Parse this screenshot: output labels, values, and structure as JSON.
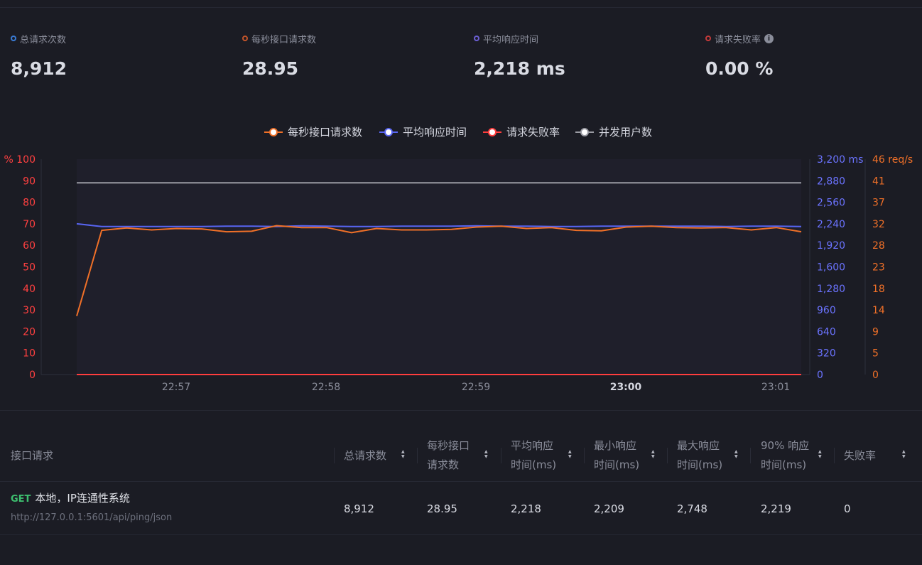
{
  "stats": [
    {
      "label": "总请求次数",
      "value": "8,912",
      "color": "#3a7bd5"
    },
    {
      "label": "每秒接口请求数",
      "value": "28.95",
      "color": "#c3542a"
    },
    {
      "label": "平均响应时间",
      "value": "2,218 ms",
      "color": "#6b5fd4"
    },
    {
      "label": "请求失败率",
      "value": "0.00 %",
      "color": "#c33a3a",
      "info": "i"
    }
  ],
  "chart_data": {
    "type": "line",
    "legend": [
      {
        "name": "每秒接口请求数",
        "color": "#f07028"
      },
      {
        "name": "平均响应时间",
        "color": "#5865f2"
      },
      {
        "name": "请求失败率",
        "color": "#ff3d3d"
      },
      {
        "name": "并发用户数",
        "color": "#9a9ba3"
      }
    ],
    "x_ticks": [
      "22:57",
      "22:58",
      "22:59",
      "23:00",
      "23:01"
    ],
    "x_tick_bold": [
      false,
      false,
      false,
      true,
      false
    ],
    "axis_left": {
      "unit": "%",
      "ticks": [
        "100",
        "90",
        "80",
        "70",
        "60",
        "50",
        "40",
        "30",
        "20",
        "10",
        "0"
      ],
      "range": [
        0,
        100
      ],
      "color": "#ff4040"
    },
    "axis_right1": {
      "unit": "ms",
      "ticks": [
        "3,200",
        "2,880",
        "2,560",
        "2,240",
        "1,920",
        "1,600",
        "1,280",
        "960",
        "640",
        "320",
        "0"
      ],
      "range": [
        0,
        3200
      ],
      "color": "#6b73ff"
    },
    "axis_right2": {
      "unit": "req/s",
      "ticks": [
        "46",
        "41",
        "37",
        "32",
        "28",
        "23",
        "18",
        "14",
        "9",
        "5",
        "0"
      ],
      "range": [
        0,
        46
      ],
      "color": "#f07028"
    },
    "series": [
      {
        "name": "每秒接口请求数",
        "axis": "right2",
        "color": "#f07028",
        "values": [
          12.5,
          30.8,
          31.3,
          30.9,
          31.2,
          31.1,
          30.5,
          30.6,
          31.8,
          31.4,
          31.4,
          30.3,
          31.2,
          30.9,
          30.9,
          31.0,
          31.5,
          31.7,
          31.2,
          31.4,
          30.8,
          30.7,
          31.5,
          31.7,
          31.4,
          31.3,
          31.4,
          30.9,
          31.4,
          30.5
        ]
      },
      {
        "name": "平均响应时间",
        "axis": "right1",
        "color": "#5865f2",
        "values": [
          2240,
          2200,
          2200,
          2200,
          2200,
          2200,
          2205,
          2205,
          2200,
          2210,
          2205,
          2200,
          2200,
          2205,
          2205,
          2205,
          2210,
          2205,
          2205,
          2200,
          2200,
          2205,
          2205,
          2205,
          2205,
          2205,
          2200,
          2205,
          2205,
          2200
        ]
      },
      {
        "name": "请求失败率",
        "axis": "left",
        "color": "#ff3d3d",
        "values": [
          0,
          0,
          0,
          0,
          0,
          0,
          0,
          0,
          0,
          0,
          0,
          0,
          0,
          0,
          0,
          0,
          0,
          0,
          0,
          0,
          0,
          0,
          0,
          0,
          0,
          0,
          0,
          0,
          0,
          0
        ]
      },
      {
        "name": "并发用户数",
        "axis": "left",
        "color": "#9a9ba3",
        "values": [
          89,
          89,
          89,
          89,
          89,
          89,
          89,
          89,
          89,
          89,
          89,
          89,
          89,
          89,
          89,
          89,
          89,
          89,
          89,
          89,
          89,
          89,
          89,
          89,
          89,
          89,
          89,
          89,
          89,
          89
        ]
      }
    ]
  },
  "table": {
    "headers": [
      {
        "line1": "接口请求",
        "line2": ""
      },
      {
        "line1": "总请求数",
        "line2": ""
      },
      {
        "line1": "每秒接口",
        "line2": "请求数"
      },
      {
        "line1": "平均响应",
        "line2": "时间(ms)"
      },
      {
        "line1": "最小响应",
        "line2": "时间(ms)"
      },
      {
        "line1": "最大响应",
        "line2": "时间(ms)"
      },
      {
        "line1": "90% 响应",
        "line2": "时间(ms)"
      },
      {
        "line1": "失败率",
        "line2": ""
      }
    ],
    "sort_up": "▲",
    "sort_down": "▼",
    "row": {
      "method": "GET",
      "name": "本地，IP连通性系统",
      "url": "http://127.0.0.1:5601/api/ping/json",
      "cells": [
        "8,912",
        "28.95",
        "2,218",
        "2,209",
        "2,748",
        "2,219",
        "0"
      ]
    }
  }
}
